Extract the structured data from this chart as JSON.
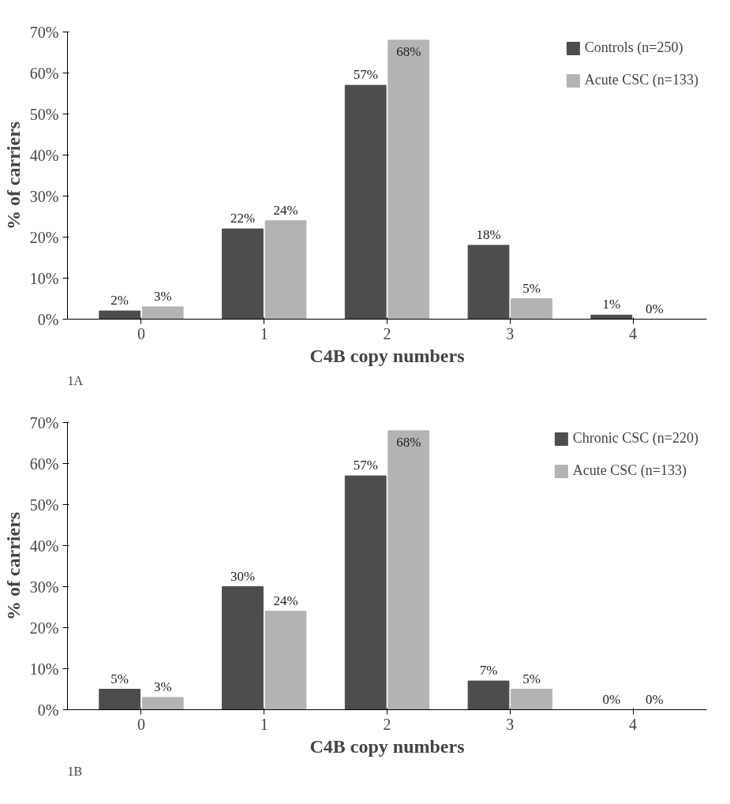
{
  "chart_data": [
    {
      "type": "bar",
      "categories": [
        "0",
        "1",
        "2",
        "3",
        "4"
      ],
      "xlabel": "C4B copy numbers",
      "ylabel": "% of carriers",
      "ylim": [
        0,
        70
      ],
      "yticks": [
        {
          "value": 0,
          "label": "0%"
        },
        {
          "value": 10,
          "label": "10%"
        },
        {
          "value": 20,
          "label": "20%"
        },
        {
          "value": 30,
          "label": "30%"
        },
        {
          "value": 40,
          "label": "40%"
        },
        {
          "value": 50,
          "label": "50%"
        },
        {
          "value": 60,
          "label": "60%"
        },
        {
          "value": 70,
          "label": "70%"
        }
      ],
      "grid": false,
      "legend": "top right",
      "annotations": [
        "1A"
      ],
      "series": [
        {
          "name": "Controls (n=250)",
          "color": "#4d4d4d",
          "values": [
            2,
            22,
            57,
            18,
            1
          ],
          "value_labels": [
            "2%",
            "22%",
            "57%",
            "18%",
            "1%"
          ]
        },
        {
          "name": "Acute CSC (n=133)",
          "color": "#b3b3b3",
          "values": [
            3,
            24,
            68,
            5,
            0
          ],
          "value_labels": [
            "3%",
            "24%",
            "68%",
            "5%",
            "0%"
          ]
        }
      ]
    },
    {
      "type": "bar",
      "categories": [
        "0",
        "1",
        "2",
        "3",
        "4"
      ],
      "xlabel": "C4B copy numbers",
      "ylabel": "% of carriers",
      "ylim": [
        0,
        70
      ],
      "yticks": [
        {
          "value": 0,
          "label": "0%"
        },
        {
          "value": 10,
          "label": "10%"
        },
        {
          "value": 20,
          "label": "20%"
        },
        {
          "value": 30,
          "label": "30%"
        },
        {
          "value": 40,
          "label": "40%"
        },
        {
          "value": 50,
          "label": "50%"
        },
        {
          "value": 60,
          "label": "60%"
        },
        {
          "value": 70,
          "label": "70%"
        }
      ],
      "grid": false,
      "legend": "top right",
      "annotations": [
        "1B"
      ],
      "series": [
        {
          "name": "Chronic CSC (n=220)",
          "color": "#4d4d4d",
          "values": [
            5,
            30,
            57,
            7,
            0
          ],
          "value_labels": [
            "5%",
            "30%",
            "57%",
            "7%",
            "0%"
          ]
        },
        {
          "name": "Acute CSC (n=133)",
          "color": "#b3b3b3",
          "values": [
            3,
            24,
            68,
            5,
            0
          ],
          "value_labels": [
            "3%",
            "24%",
            "68%",
            "5%",
            "0%"
          ]
        }
      ]
    }
  ]
}
